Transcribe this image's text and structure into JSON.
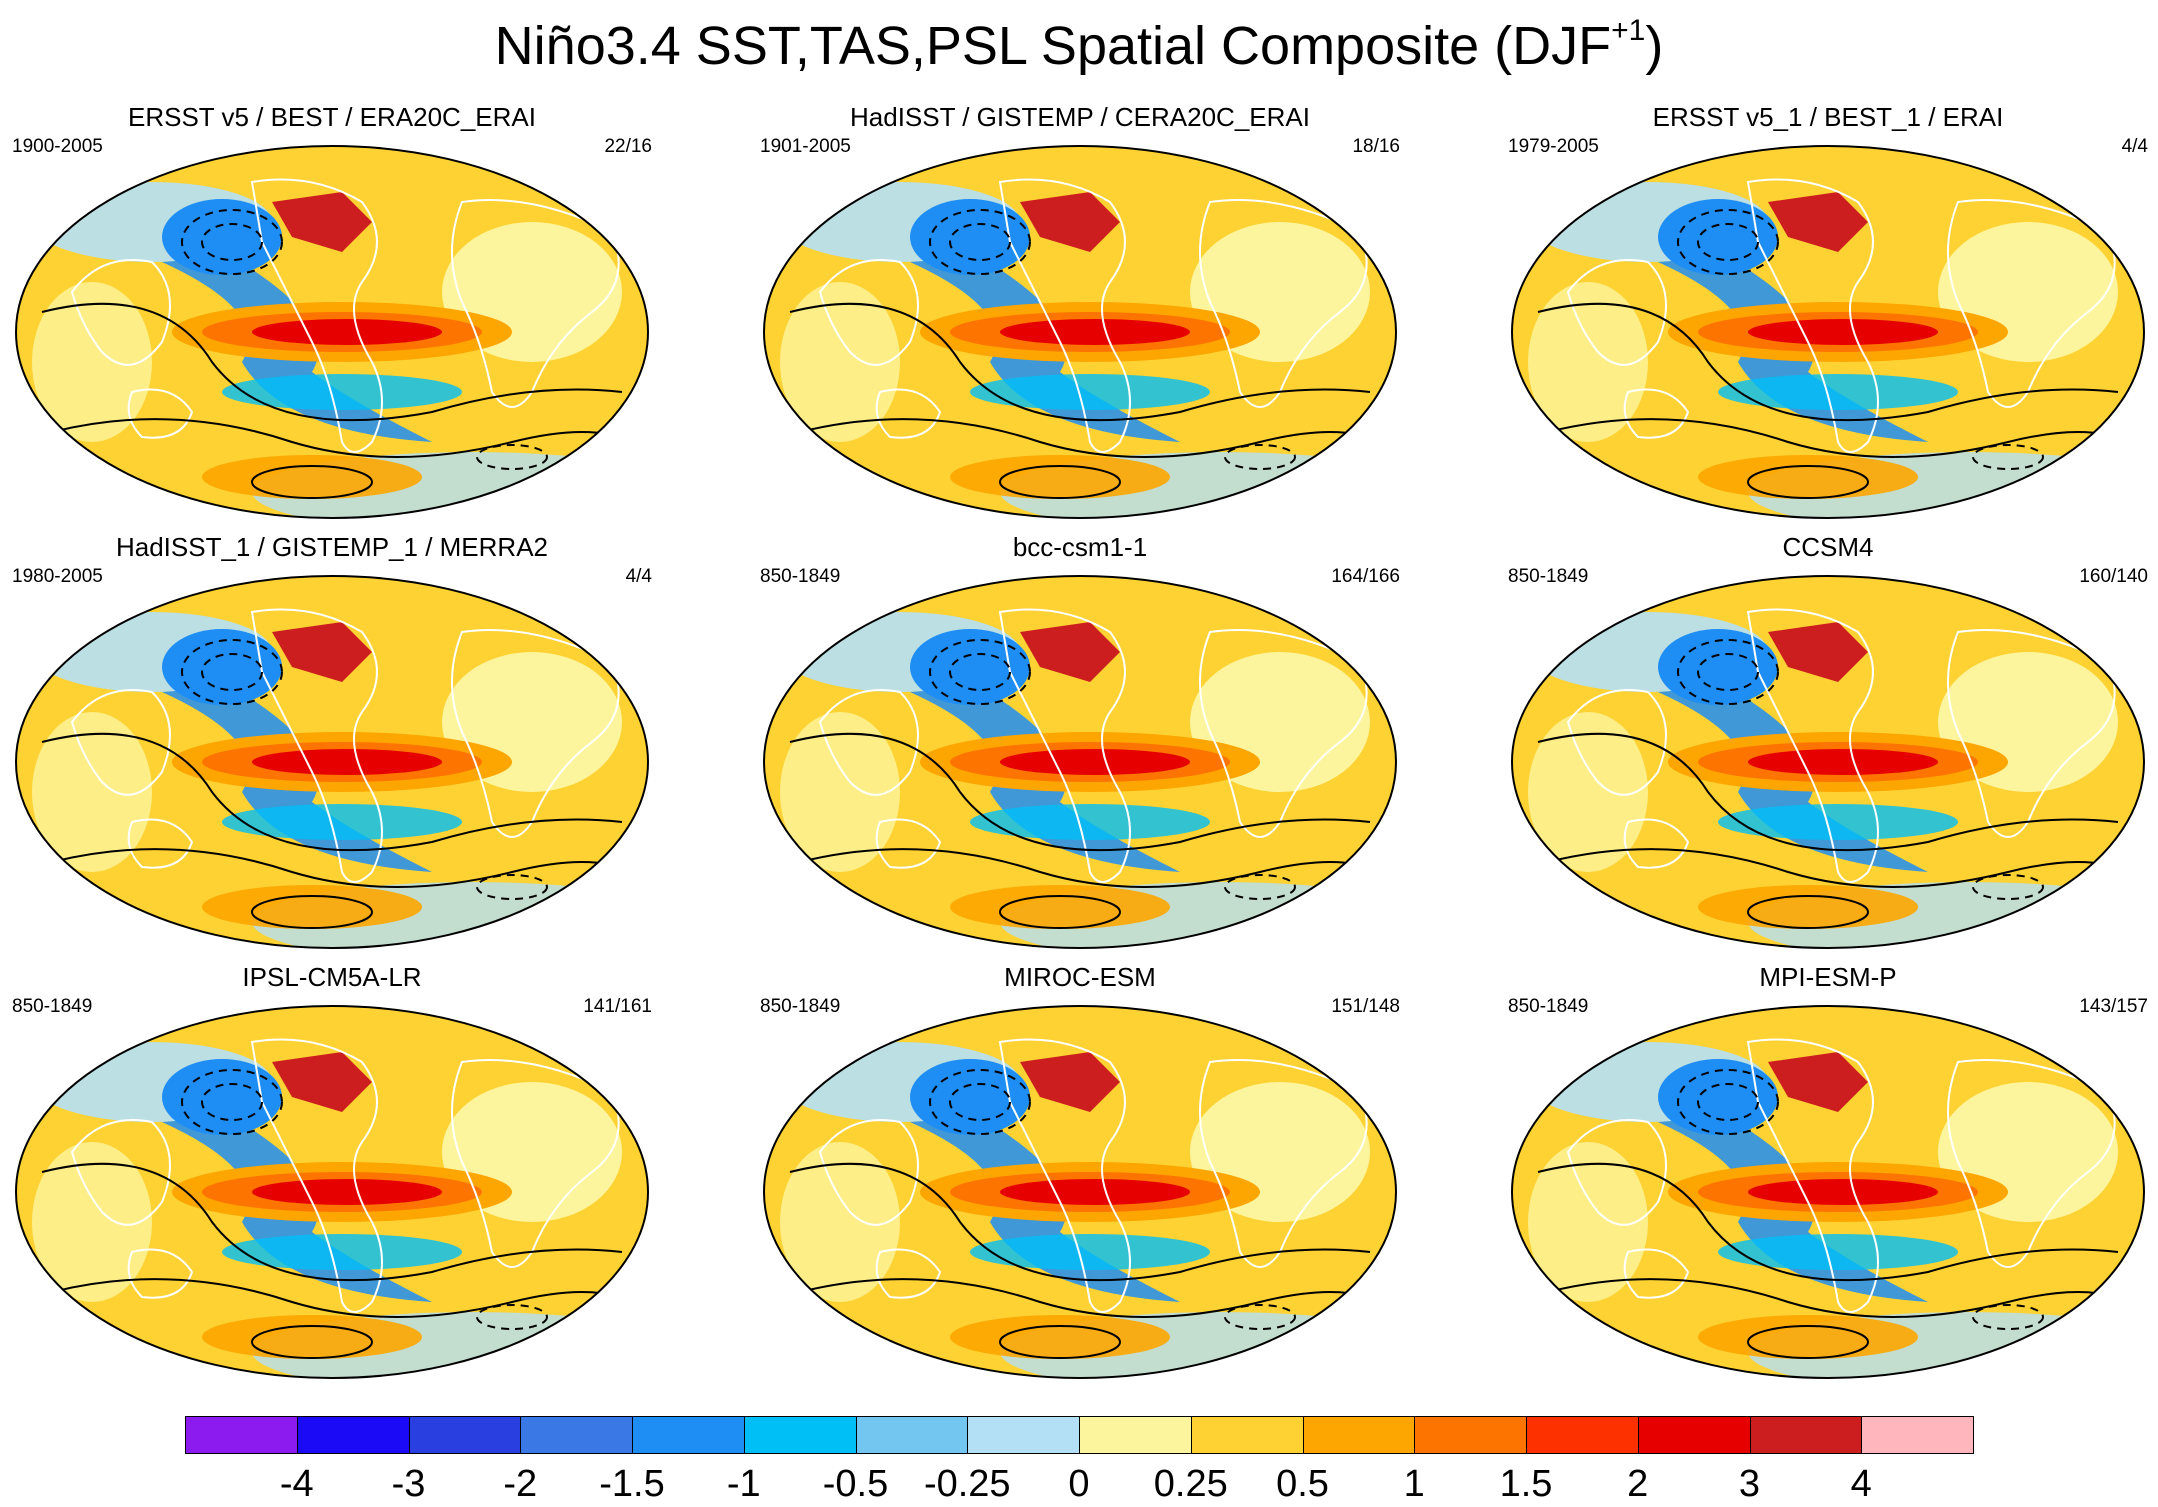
{
  "figure": {
    "title_main": "Niño3.4 SST,TAS,PSL Spatial Composite (DJF",
    "title_sup": "+1",
    "title_end": ")"
  },
  "panels": [
    {
      "title": "ERSST v5 / BEST / ERA20C_ERAI",
      "period": "1900-2005",
      "count": "22/16"
    },
    {
      "title": "HadISST / GISTEMP / CERA20C_ERAI",
      "period": "1901-2005",
      "count": "18/16"
    },
    {
      "title": "ERSST v5_1 / BEST_1 / ERAI",
      "period": "1979-2005",
      "count": "4/4"
    },
    {
      "title": "HadISST_1 / GISTEMP_1 / MERRA2",
      "period": "1980-2005",
      "count": "4/4"
    },
    {
      "title": "bcc-csm1-1",
      "period": "850-1849",
      "count": "164/166"
    },
    {
      "title": "CCSM4",
      "period": "850-1849",
      "count": "160/140"
    },
    {
      "title": "IPSL-CM5A-LR",
      "period": "850-1849",
      "count": "141/161"
    },
    {
      "title": "MIROC-ESM",
      "period": "850-1849",
      "count": "151/148"
    },
    {
      "title": "MPI-ESM-P",
      "period": "850-1849",
      "count": "143/157"
    }
  ],
  "colorbar": {
    "labels": [
      "-4",
      "-3",
      "-2",
      "-1.5",
      "-1",
      "-0.5",
      "-0.25",
      "0",
      "0.25",
      "0.5",
      "1",
      "1.5",
      "2",
      "3",
      "4"
    ],
    "colors": [
      "#8c1bf0",
      "#1a0af5",
      "#2a3fe0",
      "#3a78e6",
      "#1e8ef5",
      "#00bff7",
      "#72c6f0",
      "#b4e0f5",
      "#fdf59e",
      "#fdd232",
      "#fda500",
      "#fd7400",
      "#fd3100",
      "#e60000",
      "#cc1e1e",
      "#ffb6bd"
    ]
  },
  "colors": {
    "equatorial_anomaly": "#e60000",
    "warm_background": "#fdd232",
    "land_outline": "#ffffff",
    "contour_line": "#000000"
  }
}
